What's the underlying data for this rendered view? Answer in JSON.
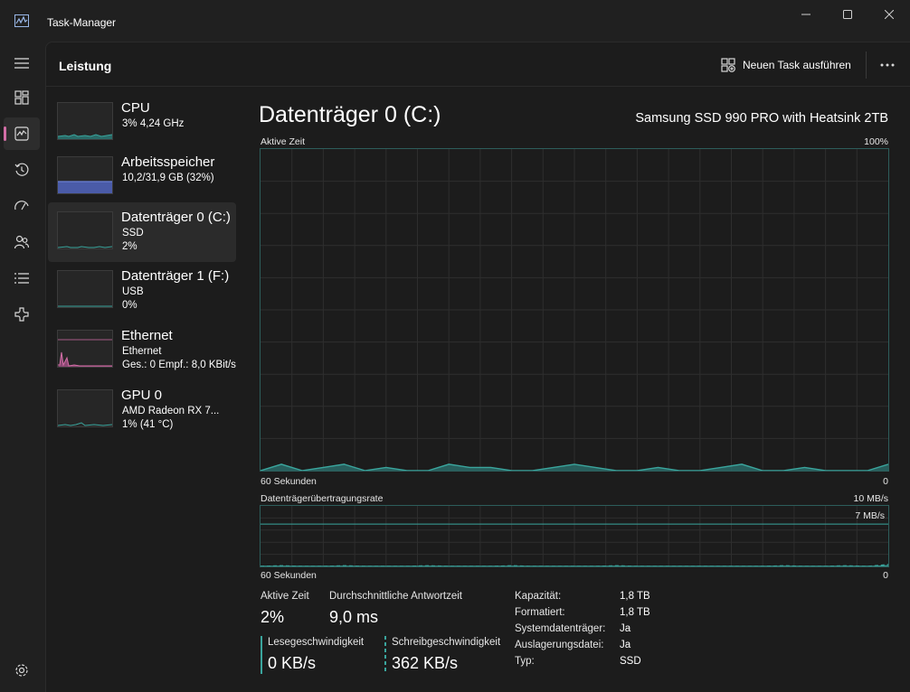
{
  "window": {
    "title": "Task-Manager"
  },
  "header": {
    "page_title": "Leistung",
    "run_task_label": "Neuen Task ausführen"
  },
  "devices": [
    {
      "name": "CPU",
      "line1": "3% 4,24 GHz",
      "line2": ""
    },
    {
      "name": "Arbeitsspeicher",
      "line1": "10,2/31,9 GB (32%)",
      "line2": ""
    },
    {
      "name": "Datenträger 0 (C:)",
      "line1": "SSD",
      "line2": "2%"
    },
    {
      "name": "Datenträger 1 (F:)",
      "line1": "USB",
      "line2": "0%"
    },
    {
      "name": "Ethernet",
      "line1": "Ethernet",
      "line2": "Ges.: 0 Empf.: 8,0 KBit/s"
    },
    {
      "name": "GPU 0",
      "line1": "AMD Radeon RX 7...",
      "line2": "1% (41 °C)"
    }
  ],
  "detail": {
    "title": "Datenträger 0 (C:)",
    "model": "Samsung SSD 990 PRO with Heatsink 2TB",
    "active_time_label": "Aktive Zeit",
    "active_time_max": "100%",
    "time_axis_left": "60 Sekunden",
    "time_axis_right": "0",
    "transfer_label": "Datenträgerübertragungsrate",
    "transfer_max": "10 MB/s",
    "transfer_ref": "7 MB/s"
  },
  "stats": {
    "active_time": {
      "label": "Aktive Zeit",
      "value": "2%"
    },
    "avg_response": {
      "label": "Durchschnittliche Antwortzeit",
      "value": "9,0 ms"
    },
    "read_speed": {
      "label": "Lesegeschwindigkeit",
      "value": "0 KB/s"
    },
    "write_speed": {
      "label": "Schreibgeschwindigkeit",
      "value": "362 KB/s"
    }
  },
  "properties": [
    {
      "key": "Kapazität:",
      "value": "1,8 TB"
    },
    {
      "key": "Formatiert:",
      "value": "1,8 TB"
    },
    {
      "key": "Systemdatenträger:",
      "value": "Ja"
    },
    {
      "key": "Auslagerungsdatei:",
      "value": "Ja"
    },
    {
      "key": "Typ:",
      "value": "SSD"
    }
  ],
  "colors": {
    "disk_accent": "#3aa59d",
    "memory_accent": "#6a7fd6",
    "network_accent": "#d26ea6",
    "nav_indicator": "#d26ea6"
  },
  "icons": {
    "nav": [
      "menu-icon",
      "processes-icon",
      "performance-icon",
      "app-history-icon",
      "startup-apps-icon",
      "users-icon",
      "details-icon",
      "services-icon",
      "settings-icon"
    ]
  },
  "chart_data": [
    {
      "type": "area",
      "title": "Aktive Zeit",
      "xlabel": "60 Sekunden",
      "ylim": [
        0,
        100
      ],
      "unit": "%",
      "x": [
        60,
        58,
        56,
        54,
        52,
        50,
        48,
        46,
        44,
        42,
        40,
        38,
        36,
        34,
        32,
        30,
        28,
        26,
        24,
        22,
        20,
        18,
        16,
        14,
        12,
        10,
        8,
        6,
        4,
        2,
        0
      ],
      "series": [
        {
          "values": [
            0,
            2,
            0,
            1,
            2,
            0,
            1,
            0,
            0,
            2,
            1,
            1,
            0,
            0,
            1,
            2,
            1,
            0,
            0,
            1,
            0,
            0,
            1,
            2,
            0,
            0,
            1,
            0,
            0,
            0,
            2
          ]
        }
      ]
    },
    {
      "type": "area",
      "title": "Datenträgerübertragungsrate",
      "xlabel": "60 Sekunden",
      "ylim": [
        0,
        10
      ],
      "unit": "MB/s",
      "reference_line": 7,
      "x": [
        60,
        58,
        56,
        54,
        52,
        50,
        48,
        46,
        44,
        42,
        40,
        38,
        36,
        34,
        32,
        30,
        28,
        26,
        24,
        22,
        20,
        18,
        16,
        14,
        12,
        10,
        8,
        6,
        4,
        2,
        0
      ],
      "series": [
        {
          "name": "Lesegeschwindigkeit",
          "values": [
            0,
            0,
            0,
            0,
            0,
            0,
            0,
            0,
            0,
            0,
            0,
            0,
            0,
            0,
            0,
            0,
            0,
            0,
            0,
            0,
            0,
            0,
            0,
            0,
            0,
            0,
            0,
            0,
            0,
            0,
            0
          ]
        },
        {
          "name": "Schreibgeschwindigkeit",
          "values": [
            0,
            0.1,
            0,
            0,
            0.1,
            0,
            0,
            0,
            0.1,
            0,
            0,
            0,
            0.1,
            0,
            0,
            0,
            0,
            0.1,
            0,
            0,
            0,
            0,
            0,
            0,
            0,
            0.1,
            0,
            0,
            0.1,
            0,
            0.3
          ]
        }
      ]
    }
  ]
}
